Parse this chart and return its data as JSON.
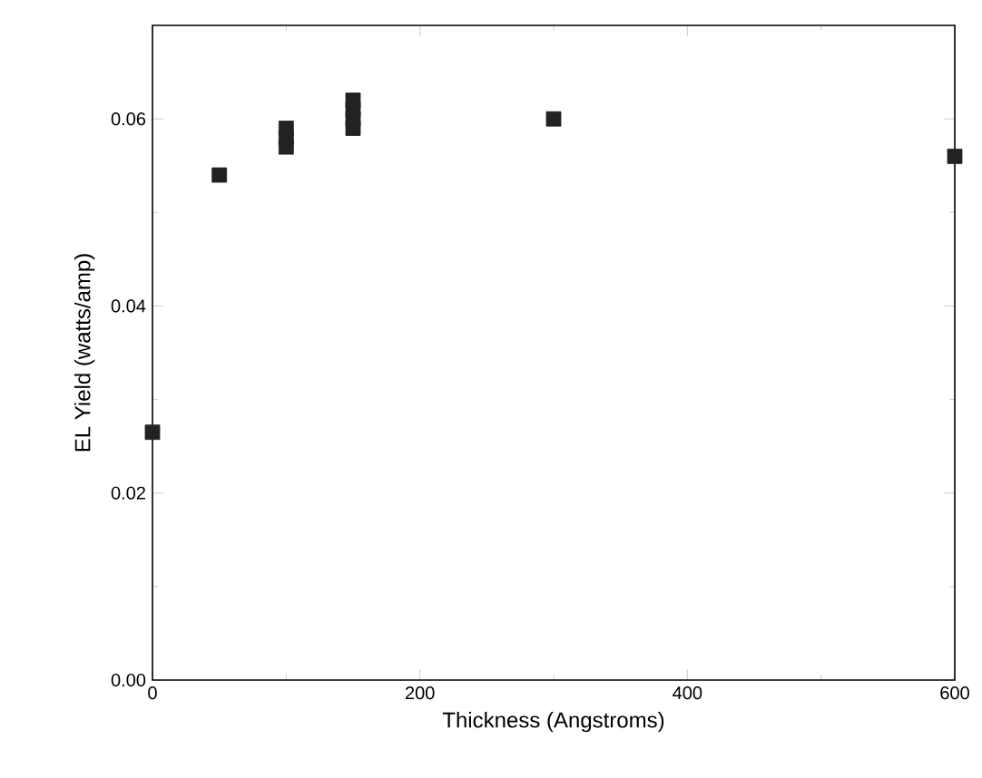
{
  "chart_data": {
    "type": "scatter",
    "xlabel": "Thickness (Angstroms)",
    "ylabel": "EL Yield (watts/amp)",
    "x": [
      0,
      50,
      100,
      100,
      100,
      150,
      150,
      150,
      150,
      300,
      600
    ],
    "values": [
      0.0265,
      0.054,
      0.057,
      0.058,
      0.059,
      0.059,
      0.06,
      0.061,
      0.062,
      0.06,
      0.056
    ],
    "color": "#222222",
    "marker": "square",
    "xlim": [
      0,
      600
    ],
    "ylim": [
      0,
      0.07
    ],
    "xticks": [
      0,
      200,
      400,
      600
    ],
    "yticks": [
      {
        "value": 0,
        "label": "0.00"
      },
      {
        "value": 0.02,
        "label": "0.02"
      },
      {
        "value": 0.04,
        "label": "0.04"
      },
      {
        "value": 0.06,
        "label": "0.06"
      }
    ]
  }
}
